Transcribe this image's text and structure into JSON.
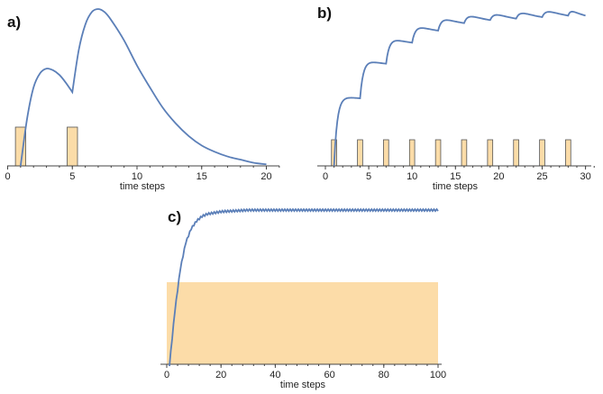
{
  "chart_data": [
    {
      "panel": "a)",
      "type": "line",
      "xlabel": "time steps",
      "xlim": [
        0,
        21
      ],
      "xticks": [
        0,
        5,
        10,
        15,
        20
      ],
      "pulses": [
        {
          "start": 0.6,
          "end": 1.4
        },
        {
          "start": 4.6,
          "end": 5.4
        }
      ],
      "series": [
        {
          "x": [
            1.0,
            1.5,
            2.0,
            2.5,
            3.0,
            3.5,
            4.0,
            4.5,
            5.0,
            5.5,
            6.0,
            6.5,
            7.0,
            7.5,
            8.0,
            9.0,
            10.0,
            11.0,
            12.0,
            13.0,
            14.0,
            15.0,
            16.0,
            17.0,
            18.0,
            19.0,
            20.0
          ],
          "y": [
            0.0,
            0.3,
            0.5,
            0.59,
            0.62,
            0.61,
            0.58,
            0.53,
            0.47,
            0.74,
            0.9,
            0.98,
            1.0,
            0.98,
            0.93,
            0.8,
            0.64,
            0.5,
            0.37,
            0.27,
            0.19,
            0.13,
            0.09,
            0.06,
            0.04,
            0.02,
            0.01
          ]
        }
      ]
    },
    {
      "panel": "b)",
      "type": "line",
      "xlabel": "time steps",
      "xlim": [
        0,
        31
      ],
      "xticks": [
        0,
        5,
        10,
        15,
        20,
        25,
        30
      ],
      "pulses": [
        {
          "start": 0.7,
          "end": 1.3
        },
        {
          "start": 3.7,
          "end": 4.3
        },
        {
          "start": 6.7,
          "end": 7.3
        },
        {
          "start": 9.7,
          "end": 10.3
        },
        {
          "start": 12.7,
          "end": 13.3
        },
        {
          "start": 15.7,
          "end": 16.3
        },
        {
          "start": 18.7,
          "end": 19.3
        },
        {
          "start": 21.7,
          "end": 22.3
        },
        {
          "start": 24.7,
          "end": 25.3
        },
        {
          "start": 27.7,
          "end": 28.3
        }
      ],
      "series": [
        {
          "peak_times": [
            1,
            4,
            7,
            10,
            13,
            16,
            19,
            22,
            25,
            28
          ],
          "peak_levels": [
            0.45,
            0.68,
            0.82,
            0.9,
            0.95,
            0.97,
            0.98,
            0.99,
            1.0,
            1.0
          ],
          "end_x": 30
        }
      ]
    },
    {
      "panel": "c)",
      "type": "line",
      "xlabel": "time steps",
      "xlim": [
        0,
        101
      ],
      "xticks": [
        0,
        20,
        40,
        60,
        80,
        100
      ],
      "pulse_region": {
        "start": 0,
        "end": 100
      },
      "series": [
        {
          "x": [
            1,
            3,
            5,
            7,
            9,
            11,
            13,
            15,
            20,
            25,
            30,
            40,
            60,
            80,
            100
          ],
          "y": [
            0.0,
            0.35,
            0.62,
            0.79,
            0.88,
            0.93,
            0.96,
            0.975,
            0.99,
            0.995,
            1.0,
            1.0,
            1.0,
            1.0,
            1.0
          ]
        }
      ]
    }
  ]
}
